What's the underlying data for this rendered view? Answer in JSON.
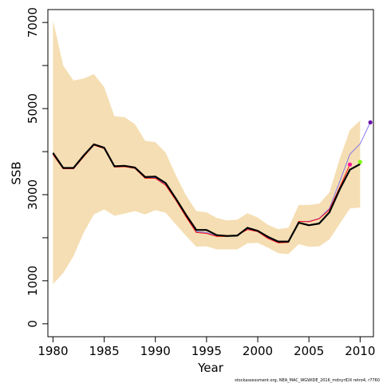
{
  "chart_data": {
    "type": "line",
    "title": "",
    "xlabel": "Year",
    "ylabel": "SSB",
    "xlim": [
      1979.5,
      2011.3
    ],
    "ylim": [
      -300,
      7300
    ],
    "x_ticks": [
      1980,
      1985,
      1990,
      1995,
      2000,
      2005,
      2010
    ],
    "y_ticks": [
      0,
      1000,
      3000,
      5000,
      7000
    ],
    "y_ticks_minor": [
      2000,
      4000,
      6000
    ],
    "band": {
      "color": "#f5deb3",
      "x": [
        1980,
        1981,
        1982,
        1983,
        1984,
        1985,
        1986,
        1987,
        1988,
        1989,
        1990,
        1991,
        1992,
        1993,
        1994,
        1995,
        1996,
        1997,
        1998,
        1999,
        2000,
        2001,
        2002,
        2003,
        2004,
        2005,
        2006,
        2007,
        2008,
        2009,
        2010
      ],
      "upper": [
        7050,
        6000,
        5650,
        5700,
        5800,
        5500,
        4820,
        4800,
        4640,
        4250,
        4220,
        3980,
        3450,
        2980,
        2620,
        2590,
        2460,
        2400,
        2420,
        2570,
        2470,
        2300,
        2200,
        2230,
        2760,
        2760,
        2790,
        3050,
        3830,
        4500,
        4720
      ],
      "lower": [
        920,
        1180,
        1570,
        2120,
        2540,
        2660,
        2510,
        2560,
        2620,
        2540,
        2640,
        2580,
        2310,
        2040,
        1790,
        1800,
        1730,
        1730,
        1730,
        1870,
        1880,
        1770,
        1640,
        1620,
        1850,
        1790,
        1800,
        1960,
        2320,
        2680,
        2700
      ]
    },
    "series": [
      {
        "color": "#000000",
        "x": [
          1980,
          1981,
          1982,
          1983,
          1984,
          1985,
          1986,
          1987,
          1988,
          1989,
          1990,
          1991,
          1992,
          1993,
          1994,
          1995,
          1996,
          1997,
          1998,
          1999,
          2000,
          2001,
          2002,
          2003,
          2004,
          2005,
          2006,
          2007,
          2008,
          2009,
          2010
        ],
        "values": [
          3970,
          3620,
          3620,
          3910,
          4170,
          4090,
          3660,
          3670,
          3630,
          3410,
          3420,
          3270,
          2910,
          2530,
          2180,
          2180,
          2060,
          2040,
          2050,
          2230,
          2160,
          2020,
          1910,
          1910,
          2350,
          2290,
          2330,
          2590,
          3120,
          3580,
          3710
        ]
      },
      {
        "color": "#ff0000",
        "x": [
          1980,
          1981,
          1982,
          1983,
          1984,
          1985,
          1986,
          1987,
          1988,
          1989,
          1990,
          1991,
          1992,
          1993,
          1994,
          1995,
          1996,
          1997,
          1998,
          1999,
          2000,
          2001,
          2002,
          2003,
          2004,
          2005,
          2006,
          2007,
          2008,
          2009
        ],
        "values": [
          3930,
          3600,
          3600,
          3880,
          4150,
          4070,
          3640,
          3650,
          3610,
          3380,
          3380,
          3220,
          2870,
          2480,
          2120,
          2100,
          2030,
          2030,
          2060,
          2190,
          2140,
          1980,
          1880,
          1890,
          2380,
          2370,
          2440,
          2650,
          3170,
          3700
        ],
        "end_point_color": "#ff1493"
      },
      {
        "color": "#7b68ee",
        "x": [
          1980,
          1981,
          1982,
          1983,
          1984,
          1985,
          1986,
          1987,
          1988,
          1989,
          1990,
          1991,
          1992,
          1993,
          1994,
          1995,
          1996,
          1997,
          1998,
          1999,
          2000,
          2001,
          2002,
          2003,
          2004,
          2005,
          2006,
          2007,
          2008,
          2009,
          2010,
          2011
        ],
        "values": [
          3950,
          3610,
          3600,
          3890,
          4160,
          4080,
          3650,
          3660,
          3620,
          3390,
          3390,
          3230,
          2880,
          2500,
          2140,
          2120,
          2040,
          2040,
          2060,
          2200,
          2150,
          1990,
          1890,
          1900,
          2380,
          2380,
          2450,
          2680,
          3300,
          3940,
          4180,
          4680
        ],
        "end_point_color": "#6a0dad"
      },
      {
        "color": "#000000",
        "x": [
          2010
        ],
        "values": [
          3760
        ],
        "end_point_color": "#7cfc00"
      }
    ],
    "footer": "stockassessment.org, NEA_MAC_WGWIDE_2016_mdnyrIDX retro4, r7760"
  }
}
